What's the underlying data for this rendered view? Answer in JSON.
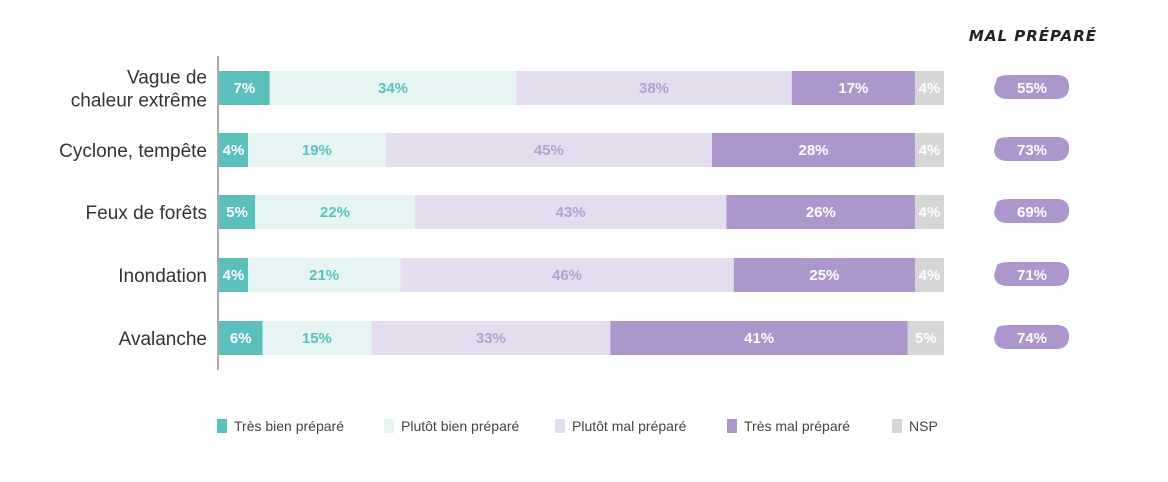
{
  "chart_data": {
    "type": "bar",
    "orientation": "horizontal",
    "stacked": true,
    "percent_stacked": true,
    "categories": [
      [
        "Vague de",
        "chaleur extrême"
      ],
      [
        "Cyclone, tempête"
      ],
      [
        "Feux de forêts"
      ],
      [
        "Inondation"
      ],
      [
        "Avalanche"
      ]
    ],
    "series": [
      {
        "name": "Très bien préparé",
        "color": "#5bbfbc",
        "label_color": "#ffffff",
        "values": [
          7,
          4,
          5,
          4,
          6
        ]
      },
      {
        "name": "Plutôt bien préparé",
        "color": "#e6f5f4",
        "label_color": "#5bbfbc",
        "values": [
          34,
          19,
          22,
          21,
          15
        ]
      },
      {
        "name": "Plutôt mal préparé",
        "color": "#e4ddef",
        "label_color": "#b2a2cf",
        "values": [
          38,
          45,
          43,
          46,
          33
        ]
      },
      {
        "name": "Très mal préparé",
        "color": "#ad96cc",
        "label_color": "#ffffff",
        "values": [
          17,
          28,
          26,
          25,
          41
        ]
      },
      {
        "name": "NSP",
        "color": "#d6d6d6",
        "label_color": "#ffffff",
        "values": [
          4,
          4,
          4,
          4,
          5
        ]
      }
    ],
    "value_suffix": "%",
    "summary": {
      "title": "MAL PRÉPARÉ",
      "color": "#ad96cc",
      "values": [
        55,
        73,
        69,
        71,
        74
      ]
    },
    "legend_position": "bottom",
    "title": "",
    "xlabel": "",
    "ylabel": ""
  }
}
